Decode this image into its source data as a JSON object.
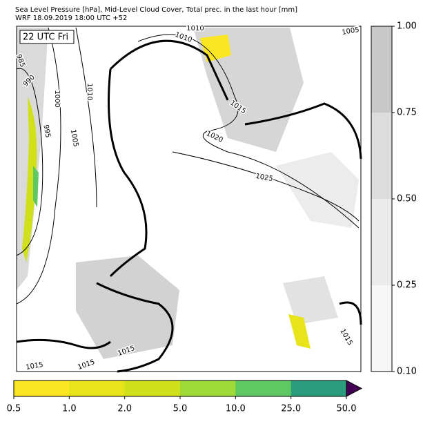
{
  "header": {
    "lines": [
      "Sea Level Pressure [hPa], Mid-Level Cloud Cover, Total prec. in the last hour [mm]",
      "WRF 18.09.2019 18:00 UTC +52"
    ]
  },
  "map": {
    "time_label": "22 UTC Fri",
    "contour_labels": [
      "1010",
      "1010",
      "1005",
      "985",
      "990",
      "1000",
      "1010",
      "995",
      "1005",
      "1015",
      "1020",
      "1025",
      "1015",
      "1015",
      "1015",
      "1015"
    ]
  },
  "cloud_colorbar": {
    "ticks": [
      "0.10",
      "0.25",
      "0.50",
      "0.75",
      "1.00"
    ],
    "colors": [
      "#f7f7f7",
      "#ebebeb",
      "#dcdcdc",
      "#c8c8c8"
    ]
  },
  "precip_colorbar": {
    "ticks": [
      "0.5",
      "1.0",
      "2.0",
      "5.0",
      "10.0",
      "25.0",
      "50.0"
    ],
    "colors": [
      "#fae622",
      "#e7e419",
      "#d0e11c",
      "#a0da39",
      "#5ec962",
      "#2a9d7c",
      "#3b528b"
    ],
    "over_color": "#440154"
  }
}
